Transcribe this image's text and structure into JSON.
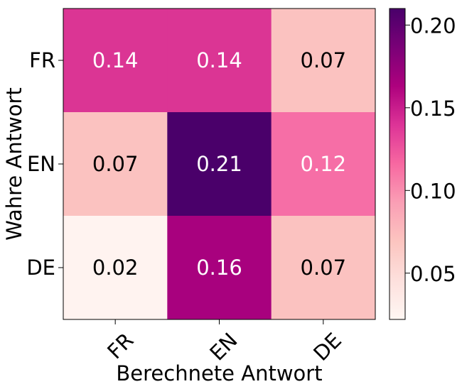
{
  "chart_data": {
    "type": "heatmap",
    "title": "",
    "xlabel": "Berechnete Antwort",
    "ylabel": "Wahre Antwort",
    "x_categories": [
      "FR",
      "EN",
      "DE"
    ],
    "y_categories": [
      "FR",
      "EN",
      "DE"
    ],
    "values": [
      [
        0.14,
        0.14,
        0.07
      ],
      [
        0.07,
        0.21,
        0.12
      ],
      [
        0.02,
        0.16,
        0.07
      ]
    ],
    "cell_labels": [
      [
        "0.14",
        "0.14",
        "0.07"
      ],
      [
        "0.07",
        "0.21",
        "0.12"
      ],
      [
        "0.02",
        "0.16",
        "0.07"
      ]
    ],
    "colormap": "RdPu",
    "colorbar": {
      "min": 0.022,
      "max": 0.21,
      "ticks": [
        0.05,
        0.1,
        0.15,
        0.2
      ],
      "tick_labels": [
        "0.05",
        "0.10",
        "0.15",
        "0.20"
      ]
    },
    "colors": {
      "cell_fill": [
        [
          "#db3594",
          "#db3594",
          "#fbc2c0"
        ],
        [
          "#fbc2c0",
          "#4a006a",
          "#f66ea6"
        ],
        [
          "#fff3f0",
          "#a8017e",
          "#fbc2c0"
        ]
      ],
      "label_color": [
        [
          "#ffffff",
          "#ffffff",
          "#000000"
        ],
        [
          "#000000",
          "#ffffff",
          "#ffffff"
        ],
        [
          "#000000",
          "#ffffff",
          "#000000"
        ]
      ],
      "colorbar_stops": [
        "#fff7f3",
        "#fde0dd",
        "#fcc5c0",
        "#fa9fb5",
        "#f768a1",
        "#dd3497",
        "#ae017e",
        "#7a0177",
        "#49006a"
      ]
    }
  }
}
